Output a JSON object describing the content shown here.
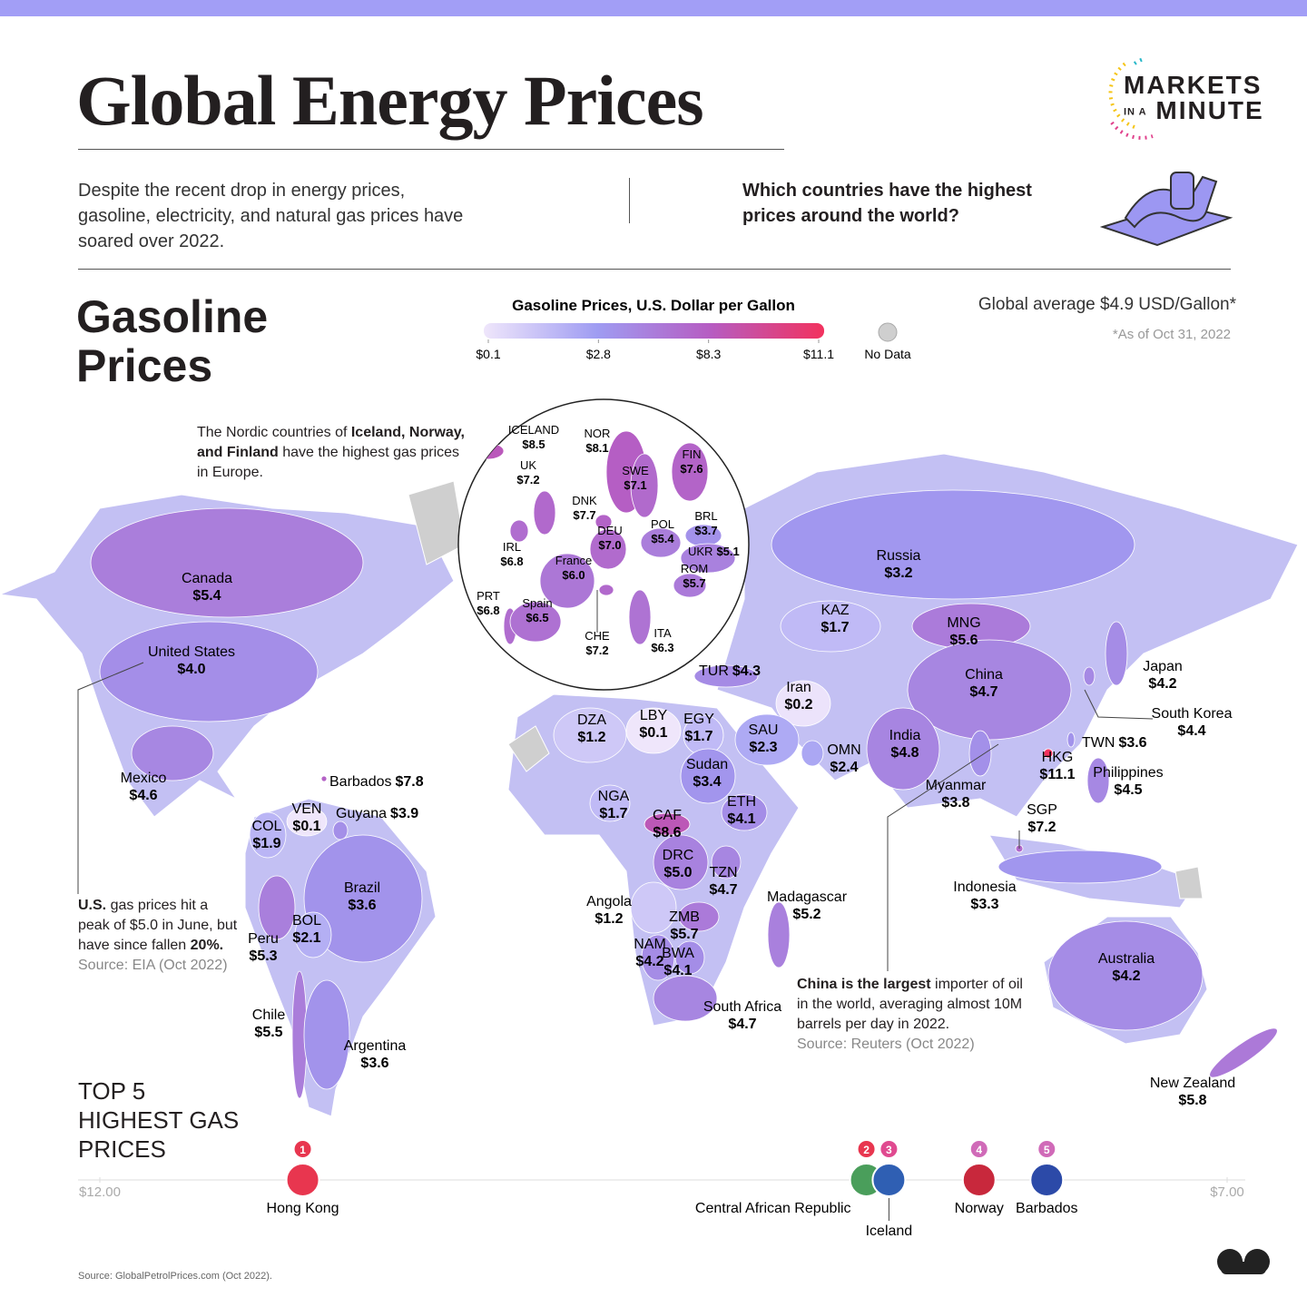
{
  "header": {
    "title": "Global Energy Prices",
    "intro": "Despite the recent drop in energy prices, gasoline, electricity, and natural gas prices have soared over 2022.",
    "question": "Which countries have the highest prices around the world?",
    "logo": {
      "top": "MARKETS",
      "small": "IN A",
      "bottom": "MINUTE"
    }
  },
  "section": {
    "title": [
      "Gasoline",
      "Prices"
    ],
    "global_average": "Global average $4.9 USD/Gallon*",
    "as_of": "*As of Oct 31, 2022"
  },
  "legend": {
    "title": "Gasoline Prices, U.S. Dollar per Gallon",
    "ticks": [
      {
        "value": 0.1,
        "label": "$0.1"
      },
      {
        "value": 2.8,
        "label": "$2.8"
      },
      {
        "value": 8.3,
        "label": "$8.3"
      },
      {
        "value": 11.1,
        "label": "$11.1"
      }
    ],
    "colors": [
      "#efe6fb",
      "#9f9cf2",
      "#b65cc2",
      "#f2325e"
    ],
    "no_data": "No Data",
    "no_data_color": "#cfcfcf"
  },
  "annotations": {
    "nordic": [
      "The Nordic countries of ",
      "Iceland, Norway, and Finland",
      " have the highest gas prices in Europe."
    ],
    "us": [
      "U.S.",
      " gas prices hit a peak of $5.0 in June, but have since fallen ",
      "20%."
    ],
    "us_source": "Source: EIA (Oct 2022)",
    "china": [
      "China is the largest",
      " importer of oil in the world, averaging almost 10M barrels per day in 2022."
    ],
    "china_source": "Source: Reuters (Oct 2022)"
  },
  "map": {
    "countries": [
      {
        "name": "ICELAND",
        "value": 8.5,
        "label": "$8.5"
      },
      {
        "name": "NOR",
        "value": 8.1,
        "label": "$8.1"
      },
      {
        "name": "UK",
        "value": 7.2,
        "label": "$7.2"
      },
      {
        "name": "FIN",
        "value": 7.6,
        "label": "$7.6"
      },
      {
        "name": "SWE",
        "value": 7.1,
        "label": "$7.1"
      },
      {
        "name": "DNK",
        "value": 7.7,
        "label": "$7.7"
      },
      {
        "name": "BRL",
        "value": 3.7,
        "label": "$3.7"
      },
      {
        "name": "DEU",
        "value": 7.0,
        "label": "$7.0"
      },
      {
        "name": "POL",
        "value": 5.4,
        "label": "$5.4"
      },
      {
        "name": "IRL",
        "value": 6.8,
        "label": "$6.8"
      },
      {
        "name": "UKR",
        "value": 5.1,
        "label": "$5.1"
      },
      {
        "name": "France",
        "value": 6.0,
        "label": "$6.0"
      },
      {
        "name": "ROM",
        "value": 5.7,
        "label": "$5.7"
      },
      {
        "name": "PRT",
        "value": 6.8,
        "label": "$6.8"
      },
      {
        "name": "Spain",
        "value": 6.5,
        "label": "$6.5"
      },
      {
        "name": "CHE",
        "value": 7.2,
        "label": "$7.2"
      },
      {
        "name": "ITA",
        "value": 6.3,
        "label": "$6.3"
      },
      {
        "name": "Canada",
        "value": 5.4,
        "label": "$5.4"
      },
      {
        "name": "United States",
        "value": 4.0,
        "label": "$4.0"
      },
      {
        "name": "Mexico",
        "value": 4.6,
        "label": "$4.6"
      },
      {
        "name": "Barbados",
        "value": 7.8,
        "label": "$7.8"
      },
      {
        "name": "VEN",
        "value": 0.1,
        "label": "$0.1"
      },
      {
        "name": "Guyana",
        "value": 3.9,
        "label": "$3.9"
      },
      {
        "name": "COL",
        "value": 1.9,
        "label": "$1.9"
      },
      {
        "name": "Brazil",
        "value": 3.6,
        "label": "$3.6"
      },
      {
        "name": "BOL",
        "value": 2.1,
        "label": "$2.1"
      },
      {
        "name": "Peru",
        "value": 5.3,
        "label": "$5.3"
      },
      {
        "name": "Chile",
        "value": 5.5,
        "label": "$5.5"
      },
      {
        "name": "Argentina",
        "value": 3.6,
        "label": "$3.6"
      },
      {
        "name": "Russia",
        "value": 3.2,
        "label": "$3.2"
      },
      {
        "name": "KAZ",
        "value": 1.7,
        "label": "$1.7"
      },
      {
        "name": "MNG",
        "value": 5.6,
        "label": "$5.6"
      },
      {
        "name": "TUR",
        "value": 4.3,
        "label": "$4.3"
      },
      {
        "name": "Iran",
        "value": 0.2,
        "label": "$0.2"
      },
      {
        "name": "China",
        "value": 4.7,
        "label": "$4.7"
      },
      {
        "name": "Japan",
        "value": 4.2,
        "label": "$4.2"
      },
      {
        "name": "South Korea",
        "value": 4.4,
        "label": "$4.4"
      },
      {
        "name": "DZA",
        "value": 1.2,
        "label": "$1.2"
      },
      {
        "name": "LBY",
        "value": 0.1,
        "label": "$0.1"
      },
      {
        "name": "EGY",
        "value": 1.7,
        "label": "$1.7"
      },
      {
        "name": "SAU",
        "value": 2.3,
        "label": "$2.3"
      },
      {
        "name": "OMN",
        "value": 2.4,
        "label": "$2.4"
      },
      {
        "name": "India",
        "value": 4.8,
        "label": "$4.8"
      },
      {
        "name": "TWN",
        "value": 3.6,
        "label": "$3.6"
      },
      {
        "name": "HKG",
        "value": 11.1,
        "label": "$11.1"
      },
      {
        "name": "Philippines",
        "value": 4.5,
        "label": "$4.5"
      },
      {
        "name": "Sudan",
        "value": 3.4,
        "label": "$3.4"
      },
      {
        "name": "Myanmar",
        "value": 3.8,
        "label": "$3.8"
      },
      {
        "name": "NGA",
        "value": 1.7,
        "label": "$1.7"
      },
      {
        "name": "ETH",
        "value": 4.1,
        "label": "$4.1"
      },
      {
        "name": "CAF",
        "value": 8.6,
        "label": "$8.6"
      },
      {
        "name": "SGP",
        "value": 7.2,
        "label": "$7.2"
      },
      {
        "name": "DRC",
        "value": 5.0,
        "label": "$5.0"
      },
      {
        "name": "TZN",
        "value": 4.7,
        "label": "$4.7"
      },
      {
        "name": "Indonesia",
        "value": 3.3,
        "label": "$3.3"
      },
      {
        "name": "Madagascar",
        "value": 5.2,
        "label": "$5.2"
      },
      {
        "name": "Angola",
        "value": 1.2,
        "label": "$1.2"
      },
      {
        "name": "ZMB",
        "value": 5.7,
        "label": "$5.7"
      },
      {
        "name": "NAM",
        "value": 4.2,
        "label": "$4.2"
      },
      {
        "name": "BWA",
        "value": 4.1,
        "label": "$4.1"
      },
      {
        "name": "Australia",
        "value": 4.2,
        "label": "$4.2"
      },
      {
        "name": "South Africa",
        "value": 4.7,
        "label": "$4.7"
      },
      {
        "name": "New Zealand",
        "value": 5.8,
        "label": "$5.8"
      }
    ]
  },
  "top5": {
    "title": "TOP 5 HIGHEST GAS PRICES",
    "xlim": [
      12,
      7
    ],
    "xticks": [
      {
        "value": 12,
        "label": "$12.00"
      },
      {
        "value": 7,
        "label": "$7.00"
      }
    ],
    "items": [
      {
        "rank": 1,
        "name": "Hong Kong",
        "value": 11.1
      },
      {
        "rank": 2,
        "name": "Central African Republic",
        "value": 8.6
      },
      {
        "rank": 3,
        "name": "Iceland",
        "value": 8.5
      },
      {
        "rank": 4,
        "name": "Norway",
        "value": 8.1
      },
      {
        "rank": 5,
        "name": "Barbados",
        "value": 7.8
      }
    ]
  },
  "footer": {
    "source": "Source: GlobalPetrolPrices.com (Oct 2022)."
  }
}
